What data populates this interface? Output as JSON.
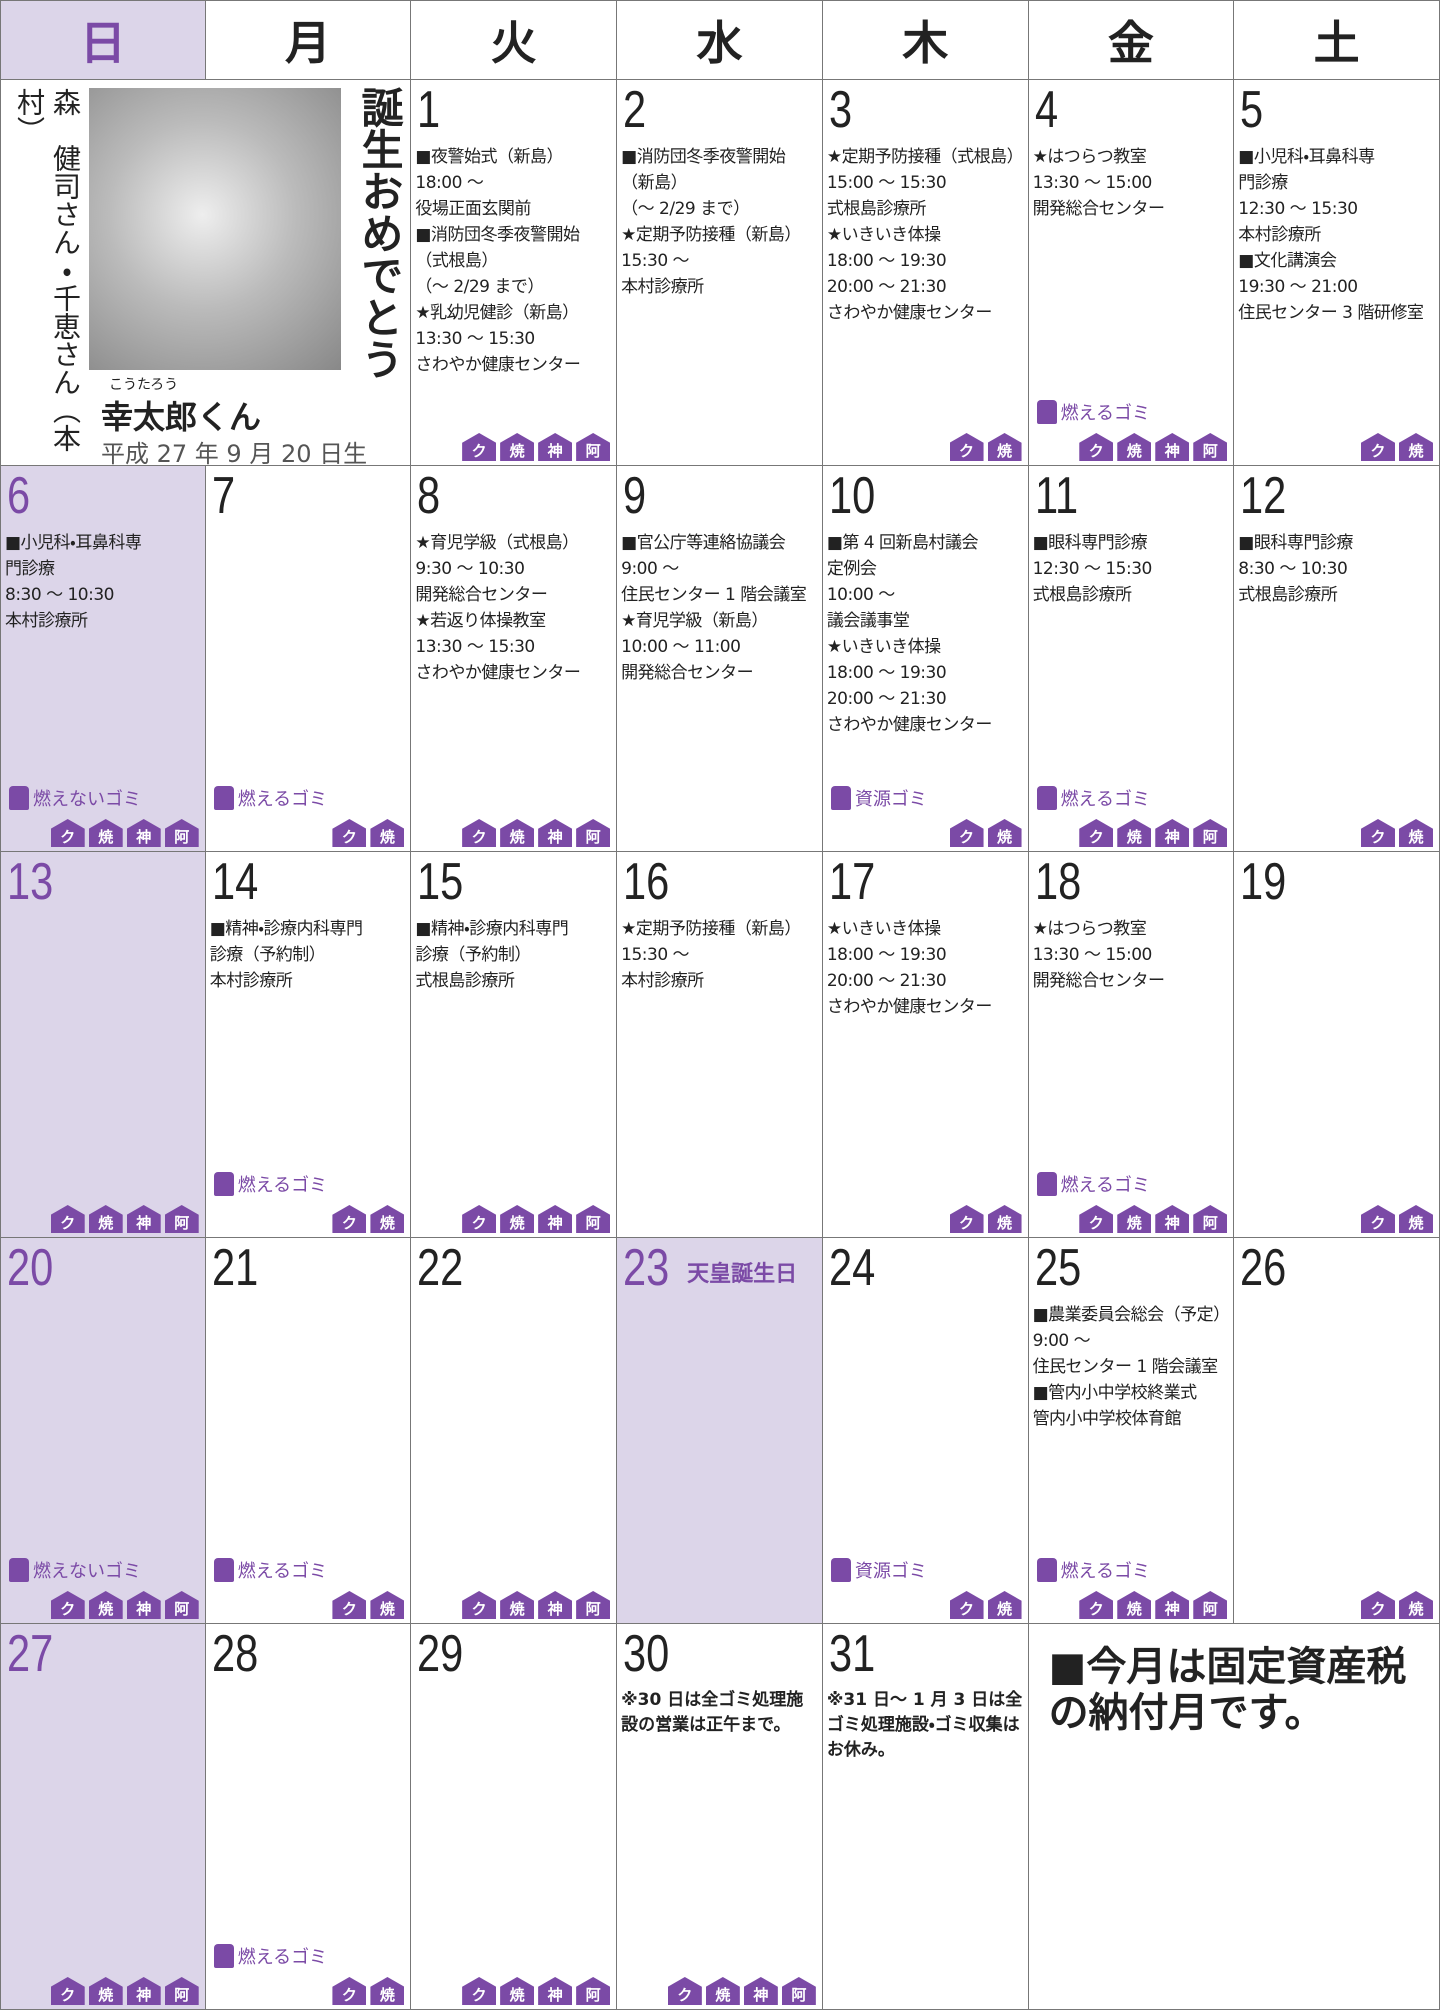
{
  "header": {
    "days": [
      "日",
      "月",
      "火",
      "水",
      "木",
      "金",
      "土"
    ]
  },
  "birthday": {
    "parents": "森　健司さん・千恵さん（本村）",
    "message": "誕生おめでとう",
    "furigana": "こうたろう",
    "name": "幸太郎くん",
    "date": "平成 27 年 9 月 20 日生"
  },
  "weeks": [
    {
      "cells": [
        {
          "day": "1",
          "events": [
            "■夜警始式（新島）",
            "18:00 ～",
            "役場正面玄関前",
            "■消防団冬季夜警開始",
            "（式根島）",
            "（～ 2/29 まで）",
            "★乳幼児健診（新島）",
            "13:30 ～ 15:30",
            "さわやか健康センター"
          ],
          "icons": [
            "ク",
            "焼",
            "神",
            "阿"
          ]
        },
        {
          "day": "2",
          "events": [
            "■消防団冬季夜警開始",
            "（新島）",
            "（～ 2/29 まで）",
            "★定期予防接種（新島）",
            "15:30 ～",
            "本村診療所"
          ]
        },
        {
          "day": "3",
          "events": [
            "★定期予防接種（式根島）",
            "15:00 ～ 15:30",
            "式根島診療所",
            "★いきいき体操",
            "18:00 ～ 19:30",
            "20:00 ～ 21:30",
            "さわやか健康センター"
          ],
          "icons": [
            "ク",
            "焼"
          ]
        },
        {
          "day": "4",
          "events": [
            "★はつらつ教室",
            "13:30 ～ 15:00",
            "開発総合センター"
          ],
          "garbage": "燃えるゴミ",
          "icons": [
            "ク",
            "焼",
            "神",
            "阿"
          ]
        },
        {
          "day": "5",
          "events": [
            "■小児科・耳鼻科専",
            "門診療",
            "12:30 ～ 15:30",
            "本村診療所",
            "■文化講演会",
            "19:30 ～ 21:00",
            "住民センター 3 階研修室"
          ],
          "icons": [
            "ク",
            "焼"
          ]
        }
      ]
    },
    {
      "cells": [
        {
          "day": "6",
          "events": [
            "■小児科・耳鼻科専",
            "門診療",
            "8:30 ～ 10:30",
            "本村診療所"
          ],
          "garbage": "燃えないゴミ",
          "icons": [
            "ク",
            "焼",
            "神",
            "阿"
          ]
        },
        {
          "day": "7",
          "garbage": "燃えるゴミ",
          "icons": [
            "ク",
            "焼"
          ]
        },
        {
          "day": "8",
          "events": [
            "★育児学級（式根島）",
            "9:30 ～ 10:30",
            "開発総合センター",
            "★若返り体操教室",
            "13:30 ～ 15:30",
            "さわやか健康センター"
          ],
          "icons": [
            "ク",
            "焼",
            "神",
            "阿"
          ]
        },
        {
          "day": "9",
          "events": [
            "■官公庁等連絡協議会",
            "9:00 ～",
            "住民センター 1 階会議室",
            "★育児学級（新島）",
            "10:00 ～ 11:00",
            "開発総合センター"
          ]
        },
        {
          "day": "10",
          "events": [
            "■第 4 回新島村議会",
            "定例会",
            "10:00 ～",
            "議会議事堂",
            "★いきいき体操",
            "18:00 ～ 19:30",
            "20:00 ～ 21:30",
            "さわやか健康センター"
          ],
          "garbage": "資源ゴミ",
          "icons": [
            "ク",
            "焼"
          ]
        },
        {
          "day": "11",
          "events": [
            "■眼科専門診療",
            "12:30 ～ 15:30",
            "式根島診療所"
          ],
          "garbage": "燃えるゴミ",
          "icons": [
            "ク",
            "焼",
            "神",
            "阿"
          ]
        },
        {
          "day": "12",
          "events": [
            "■眼科専門診療",
            "8:30 ～ 10:30",
            "式根島診療所"
          ],
          "icons": [
            "ク",
            "焼"
          ]
        }
      ]
    },
    {
      "cells": [
        {
          "day": "13",
          "icons": [
            "ク",
            "焼",
            "神",
            "阿"
          ]
        },
        {
          "day": "14",
          "events": [
            "■精神・診療内科専門",
            "診療（予約制）",
            "本村診療所"
          ],
          "garbage": "燃えるゴミ",
          "icons": [
            "ク",
            "焼"
          ]
        },
        {
          "day": "15",
          "events": [
            "■精神・診療内科専門",
            "診療（予約制）",
            "式根島診療所"
          ],
          "icons": [
            "ク",
            "焼",
            "神",
            "阿"
          ]
        },
        {
          "day": "16",
          "events": [
            "★定期予防接種（新島）",
            "15:30 ～",
            "本村診療所"
          ]
        },
        {
          "day": "17",
          "events": [
            "★いきいき体操",
            "18:00 ～ 19:30",
            "20:00 ～ 21:30",
            "さわやか健康センター"
          ],
          "icons": [
            "ク",
            "焼"
          ]
        },
        {
          "day": "18",
          "events": [
            "★はつらつ教室",
            "13:30 ～ 15:00",
            "開発総合センター"
          ],
          "garbage": "燃えるゴミ",
          "icons": [
            "ク",
            "焼",
            "神",
            "阿"
          ]
        },
        {
          "day": "19",
          "icons": [
            "ク",
            "焼"
          ]
        }
      ]
    },
    {
      "cells": [
        {
          "day": "20",
          "garbage": "燃えないゴミ",
          "icons": [
            "ク",
            "焼",
            "神",
            "阿"
          ]
        },
        {
          "day": "21",
          "garbage": "燃えるゴミ",
          "icons": [
            "ク",
            "焼"
          ]
        },
        {
          "day": "22",
          "icons": [
            "ク",
            "焼",
            "神",
            "阿"
          ]
        },
        {
          "day": "23",
          "holiday": "天皇誕生日"
        },
        {
          "day": "24",
          "garbage": "資源ゴミ",
          "icons": [
            "ク",
            "焼"
          ]
        },
        {
          "day": "25",
          "events": [
            "■農業委員会総会（予定）",
            "9:00 ～",
            "住民センター 1 階会議室",
            "■管内小中学校終業式",
            "管内小中学校体育館"
          ],
          "garbage": "燃えるゴミ",
          "icons": [
            "ク",
            "焼",
            "神",
            "阿"
          ]
        },
        {
          "day": "26",
          "icons": [
            "ク",
            "焼"
          ]
        }
      ]
    },
    {
      "cells": [
        {
          "day": "27",
          "icons": [
            "ク",
            "焼",
            "神",
            "阿"
          ]
        },
        {
          "day": "28",
          "garbage": "燃えるゴミ",
          "icons": [
            "ク",
            "焼"
          ]
        },
        {
          "day": "29",
          "icons": [
            "ク",
            "焼",
            "神",
            "阿"
          ]
        },
        {
          "day": "30",
          "note": "※30 日は全ゴミ処理施設の営業は正午まで。",
          "icons": [
            "ク",
            "焼",
            "神",
            "阿"
          ]
        },
        {
          "day": "31",
          "note": "※31 日～ 1 月 3 日は全ゴミ処理施設・ゴミ収集はお休み。"
        }
      ]
    }
  ],
  "notice": "■今月は固定資産税の納付月です。"
}
